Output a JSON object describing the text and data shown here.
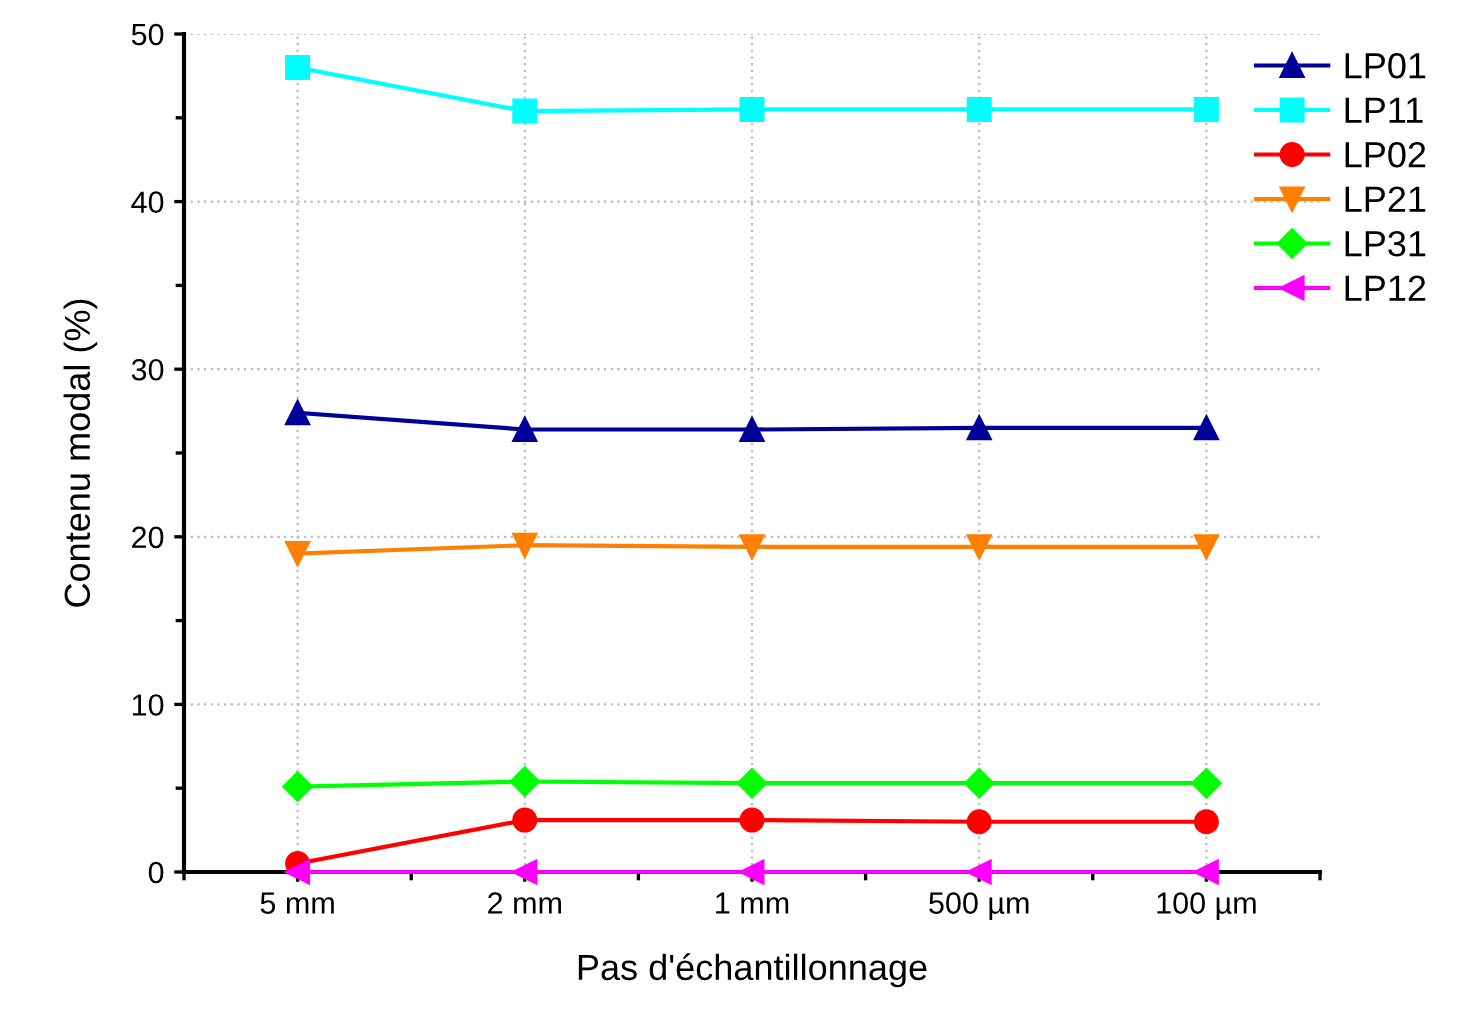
{
  "chart_data": {
    "type": "line",
    "xlabel": "Pas d'échantillonnage",
    "ylabel": "Contenu modal (%)",
    "categories": [
      "5 mm",
      "2 mm",
      "1 mm",
      "500 µm",
      "100 µm"
    ],
    "ylim": [
      0,
      50
    ],
    "yticks": [
      0,
      10,
      20,
      30,
      40,
      50
    ],
    "grid": true,
    "legend": "right",
    "series": [
      {
        "name": "LP01",
        "color": "#000099",
        "marker": "triangle",
        "values": [
          27.4,
          26.4,
          26.4,
          26.5,
          26.5
        ]
      },
      {
        "name": "LP11",
        "color": "#00ffff",
        "marker": "square",
        "values": [
          48.0,
          45.4,
          45.5,
          45.5,
          45.5
        ]
      },
      {
        "name": "LP02",
        "color": "#ff0000",
        "marker": "circle",
        "values": [
          0.5,
          3.1,
          3.1,
          3.0,
          3.0
        ]
      },
      {
        "name": "LP21",
        "color": "#ff8000",
        "marker": "triangle_down",
        "values": [
          19.0,
          19.5,
          19.4,
          19.4,
          19.4
        ]
      },
      {
        "name": "LP31",
        "color": "#00ff00",
        "marker": "diamond",
        "values": [
          5.1,
          5.4,
          5.3,
          5.3,
          5.3
        ]
      },
      {
        "name": "LP12",
        "color": "#ff00ff",
        "marker": "triangle_left",
        "values": [
          0,
          0,
          0,
          0,
          0
        ]
      }
    ]
  }
}
